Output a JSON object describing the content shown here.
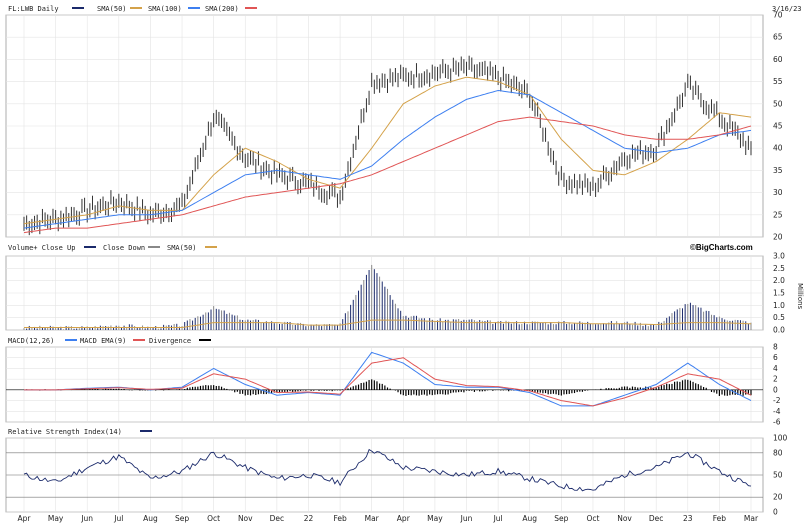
{
  "chart_data": [
    {
      "type": "candlestick",
      "id": "price",
      "legend": [
        "FL:LWB Daily",
        "SMA(50)",
        "SMA(100)",
        "SMA(200)"
      ],
      "date": "3/16/23",
      "ylim": [
        20,
        70
      ],
      "yticks": [
        20,
        25,
        30,
        35,
        40,
        45,
        50,
        55,
        60,
        65,
        70
      ],
      "colors": {
        "price": "#333333",
        "sma50": "#d4a24a",
        "sma100": "#3d7ff0",
        "sma200": "#e05555"
      },
      "x": [
        "Apr",
        "May",
        "Jun",
        "Jul",
        "Aug",
        "Sep",
        "Oct",
        "Nov",
        "Dec",
        "22",
        "Feb",
        "Mar",
        "Apr",
        "May",
        "Jun",
        "Jul",
        "Aug",
        "Sep",
        "Oct",
        "Nov",
        "Dec",
        "23",
        "Feb",
        "Mar"
      ],
      "series": [
        {
          "name": "FL:LWB Daily",
          "values": [
            23,
            24,
            26,
            28,
            25,
            27,
            47,
            38,
            34,
            32,
            29,
            55,
            56,
            57,
            58,
            56,
            52,
            33,
            31,
            38,
            40,
            54,
            47,
            40
          ]
        },
        {
          "name": "SMA(50)",
          "values": [
            23,
            24,
            25,
            27,
            26,
            26,
            34,
            40,
            37,
            33,
            31,
            40,
            50,
            54,
            56,
            55,
            52,
            42,
            35,
            34,
            37,
            42,
            48,
            47
          ]
        },
        {
          "name": "SMA(100)",
          "values": [
            22,
            23,
            24,
            25,
            25,
            26,
            30,
            34,
            35,
            34,
            33,
            36,
            42,
            47,
            51,
            53,
            52,
            48,
            44,
            40,
            39,
            40,
            43,
            44
          ]
        },
        {
          "name": "SMA(200)",
          "values": [
            21,
            22,
            22,
            23,
            24,
            25,
            27,
            29,
            30,
            31,
            32,
            34,
            37,
            40,
            43,
            46,
            47,
            46,
            45,
            43,
            42,
            42,
            43,
            45
          ]
        }
      ]
    },
    {
      "type": "bar",
      "id": "volume",
      "legend": [
        "Volume+ Close Up",
        "Close Down",
        "SMA(50)"
      ],
      "brand": "©BigCharts.com",
      "unit": "Millions",
      "ylim": [
        0,
        3
      ],
      "yticks": [
        "3.0",
        "2.5",
        "2.0",
        "1.5",
        "1.0",
        "0.5",
        "0.0"
      ],
      "x": [
        "Apr",
        "May",
        "Jun",
        "Jul",
        "Aug",
        "Sep",
        "Oct",
        "Nov",
        "Dec",
        "22",
        "Feb",
        "Mar",
        "Apr",
        "May",
        "Jun",
        "Jul",
        "Aug",
        "Sep",
        "Oct",
        "Nov",
        "Dec",
        "23",
        "Feb",
        "Mar"
      ],
      "values": [
        0.1,
        0.1,
        0.1,
        0.2,
        0.1,
        0.2,
        0.9,
        0.4,
        0.3,
        0.2,
        0.2,
        2.7,
        0.6,
        0.4,
        0.4,
        0.3,
        0.3,
        0.3,
        0.3,
        0.3,
        0.2,
        1.1,
        0.5,
        0.3
      ],
      "sma": [
        0.1,
        0.1,
        0.1,
        0.1,
        0.1,
        0.1,
        0.3,
        0.3,
        0.3,
        0.2,
        0.2,
        0.4,
        0.4,
        0.35,
        0.3,
        0.3,
        0.3,
        0.3,
        0.25,
        0.25,
        0.22,
        0.3,
        0.3,
        0.25
      ]
    },
    {
      "type": "line",
      "id": "macd",
      "legend": [
        "MACD(12,26)",
        "MACD EMA(9)",
        "Divergence"
      ],
      "ylim": [
        -6,
        8
      ],
      "yticks": [
        "8",
        "6",
        "4",
        "2",
        "0",
        "-2",
        "-4",
        "-6"
      ],
      "x": [
        "Apr",
        "May",
        "Jun",
        "Jul",
        "Aug",
        "Sep",
        "Oct",
        "Nov",
        "Dec",
        "22",
        "Feb",
        "Mar",
        "Apr",
        "May",
        "Jun",
        "Jul",
        "Aug",
        "Sep",
        "Oct",
        "Nov",
        "Dec",
        "23",
        "Feb",
        "Mar"
      ],
      "series": [
        {
          "name": "MACD(12,26)",
          "values": [
            0,
            0,
            0.3,
            0.5,
            0,
            0.5,
            4,
            1,
            -1,
            -0.5,
            -1,
            7,
            5,
            1,
            0.5,
            0.5,
            -0.5,
            -3,
            -3,
            -1,
            1,
            5,
            1,
            -2
          ]
        },
        {
          "name": "MACD EMA(9)",
          "values": [
            0,
            0,
            0.2,
            0.4,
            0.1,
            0.3,
            3,
            2,
            -0.5,
            -0.4,
            -0.8,
            5,
            6,
            2,
            0.8,
            0.6,
            -0.2,
            -2,
            -3,
            -1.5,
            0.5,
            3,
            2,
            -1
          ]
        },
        {
          "name": "Divergence",
          "values": [
            0,
            0,
            0.1,
            0.1,
            -0.1,
            0.2,
            1,
            -1,
            -0.5,
            -0.1,
            -0.2,
            2,
            -1,
            -1,
            -0.3,
            -0.1,
            -0.3,
            -1,
            0,
            0.5,
            0.5,
            2,
            -1,
            -1
          ]
        }
      ]
    },
    {
      "type": "line",
      "id": "rsi",
      "legend": [
        "Relative Strength Index(14)"
      ],
      "ylim": [
        0,
        100
      ],
      "yticks": [
        "100",
        "80",
        "50",
        "20",
        "0"
      ],
      "x": [
        "Apr",
        "May",
        "Jun",
        "Jul",
        "Aug",
        "Sep",
        "Oct",
        "Nov",
        "Dec",
        "22",
        "Feb",
        "Mar",
        "Apr",
        "May",
        "Jun",
        "Jul",
        "Aug",
        "Sep",
        "Oct",
        "Nov",
        "Dec",
        "23",
        "Feb",
        "Mar"
      ],
      "series": [
        {
          "name": "Relative Strength Index(14)",
          "values": [
            50,
            40,
            60,
            75,
            45,
            55,
            80,
            60,
            45,
            50,
            40,
            85,
            60,
            55,
            50,
            55,
            45,
            35,
            30,
            50,
            60,
            80,
            55,
            35
          ]
        }
      ]
    }
  ]
}
